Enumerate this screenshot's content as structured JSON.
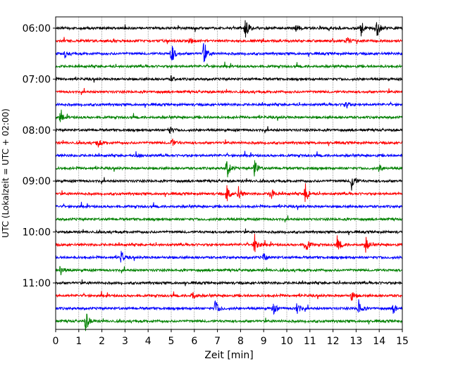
{
  "chart_data": {
    "type": "line",
    "xlabel": "Zeit  [min]",
    "ylabel": "UTC (Lokalzeit = UTC + 02:00)",
    "xlim": [
      0,
      15
    ],
    "x_ticks": [
      "0",
      "1",
      "2",
      "3",
      "4",
      "5",
      "6",
      "7",
      "8",
      "9",
      "10",
      "11",
      "12",
      "13",
      "14",
      "15"
    ],
    "y_tick_labels": [
      "06:00",
      "07:00",
      "08:00",
      "09:00",
      "10:00",
      "11:00"
    ],
    "grid": "vertical-dotted",
    "trace_colors": [
      "#000000",
      "#ff0000",
      "#0000ff",
      "#008000"
    ],
    "traces_count_per_hour": 4,
    "traces_total": 24,
    "events": [
      {
        "trace": 0,
        "t": 8.2,
        "amp": 1.0
      },
      {
        "trace": 0,
        "t": 13.2,
        "amp": 0.8
      },
      {
        "trace": 0,
        "t": 13.9,
        "amp": 0.9
      },
      {
        "trace": 0,
        "t": 10.4,
        "amp": 0.35
      },
      {
        "trace": 1,
        "t": 5.8,
        "amp": 0.3
      },
      {
        "trace": 1,
        "t": 12.6,
        "amp": 0.35
      },
      {
        "trace": 2,
        "t": 0.4,
        "amp": 0.35
      },
      {
        "trace": 2,
        "t": 5.0,
        "amp": 1.0
      },
      {
        "trace": 2,
        "t": 6.4,
        "amp": 1.0
      },
      {
        "trace": 4,
        "t": 5.0,
        "amp": 0.25
      },
      {
        "trace": 6,
        "t": 12.5,
        "amp": 0.6
      },
      {
        "trace": 7,
        "t": 0.2,
        "amp": 0.4
      },
      {
        "trace": 8,
        "t": 4.9,
        "amp": 0.4
      },
      {
        "trace": 9,
        "t": 1.8,
        "amp": 0.5
      },
      {
        "trace": 9,
        "t": 5.0,
        "amp": 0.45
      },
      {
        "trace": 10,
        "t": 3.5,
        "amp": 0.35
      },
      {
        "trace": 11,
        "t": 7.4,
        "amp": 1.0
      },
      {
        "trace": 11,
        "t": 8.6,
        "amp": 0.9
      },
      {
        "trace": 11,
        "t": 14.0,
        "amp": 0.35
      },
      {
        "trace": 12,
        "t": 12.8,
        "amp": 1.0
      },
      {
        "trace": 13,
        "t": 7.4,
        "amp": 0.9
      },
      {
        "trace": 13,
        "t": 7.9,
        "amp": 0.7
      },
      {
        "trace": 13,
        "t": 9.3,
        "amp": 0.7
      },
      {
        "trace": 13,
        "t": 10.8,
        "amp": 1.0
      },
      {
        "trace": 17,
        "t": 8.6,
        "amp": 1.0
      },
      {
        "trace": 17,
        "t": 10.8,
        "amp": 0.8
      },
      {
        "trace": 17,
        "t": 12.2,
        "amp": 0.7
      },
      {
        "trace": 17,
        "t": 13.4,
        "amp": 0.8
      },
      {
        "trace": 18,
        "t": 2.8,
        "amp": 0.7
      },
      {
        "trace": 18,
        "t": 9.0,
        "amp": 0.4
      },
      {
        "trace": 19,
        "t": 0.2,
        "amp": 0.5
      },
      {
        "trace": 22,
        "t": 6.9,
        "amp": 0.8
      },
      {
        "trace": 22,
        "t": 9.4,
        "amp": 0.6
      },
      {
        "trace": 22,
        "t": 10.4,
        "amp": 0.8
      },
      {
        "trace": 22,
        "t": 13.1,
        "amp": 0.8
      },
      {
        "trace": 22,
        "t": 14.6,
        "amp": 0.5
      },
      {
        "trace": 21,
        "t": 5.9,
        "amp": 0.5
      },
      {
        "trace": 21,
        "t": 12.8,
        "amp": 0.45
      },
      {
        "trace": 23,
        "t": 1.3,
        "amp": 1.0
      }
    ]
  }
}
